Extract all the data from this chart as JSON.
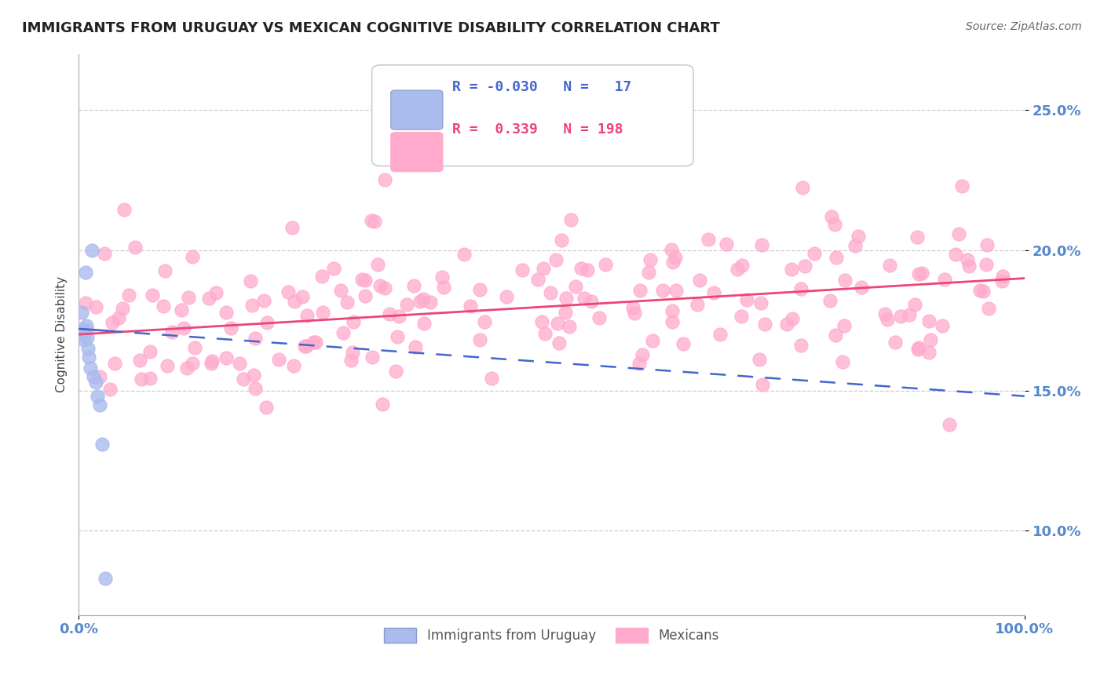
{
  "title": "IMMIGRANTS FROM URUGUAY VS MEXICAN COGNITIVE DISABILITY CORRELATION CHART",
  "source": "Source: ZipAtlas.com",
  "ylabel": "Cognitive Disability",
  "y_tick_values": [
    0.1,
    0.15,
    0.2,
    0.25
  ],
  "xlim": [
    0.0,
    1.0
  ],
  "ylim": [
    0.07,
    0.27
  ],
  "background_color": "#ffffff",
  "grid_color": "#c8c8d0",
  "uruguay_color": "#aabbee",
  "mexico_color": "#ffaacc",
  "uruguay_line_color": "#4466cc",
  "mexico_line_color": "#ee4477",
  "r_uruguay": -0.03,
  "r_mexico": 0.339,
  "n_uruguay": 17,
  "n_mexico": 198,
  "axis_label_color": "#5588cc",
  "legend_label1": "Immigrants from Uruguay",
  "legend_label2": "Mexicans",
  "uru_x": [
    0.003,
    0.004,
    0.005,
    0.006,
    0.007,
    0.008,
    0.009,
    0.01,
    0.011,
    0.012,
    0.014,
    0.016,
    0.018,
    0.02,
    0.022,
    0.025,
    0.028
  ],
  "uru_y": [
    0.178,
    0.172,
    0.17,
    0.168,
    0.192,
    0.173,
    0.169,
    0.165,
    0.162,
    0.158,
    0.2,
    0.155,
    0.153,
    0.148,
    0.145,
    0.131,
    0.083
  ],
  "uru_line_x": [
    0.0,
    1.0
  ],
  "uru_line_y": [
    0.172,
    0.148
  ],
  "mex_line_x": [
    0.0,
    1.0
  ],
  "mex_line_y": [
    0.17,
    0.19
  ]
}
